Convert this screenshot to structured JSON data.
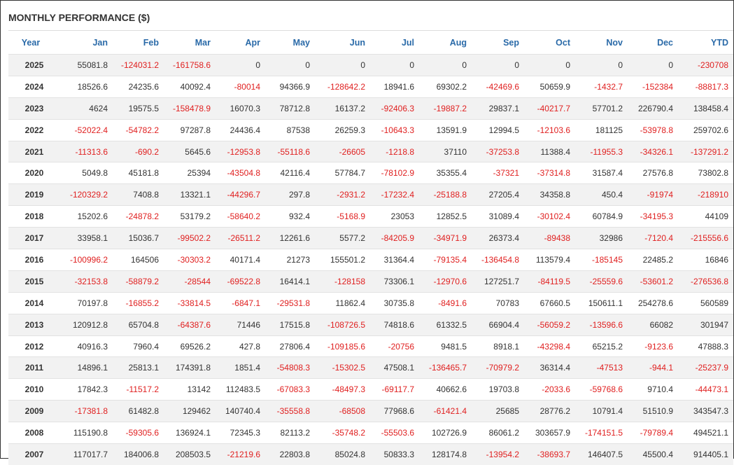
{
  "title": "MONTHLY PERFORMANCE ($)",
  "colors": {
    "header_text": "#2a6aa8",
    "negative": "#e02020",
    "text": "#333333",
    "stripe": "#f2f2f2"
  },
  "columns": [
    "Year",
    "Jan",
    "Feb",
    "Mar",
    "Apr",
    "May",
    "Jun",
    "Jul",
    "Aug",
    "Sep",
    "Oct",
    "Nov",
    "Dec",
    "YTD"
  ],
  "rows": [
    [
      "2025",
      "55081.8",
      "-124031.2",
      "-161758.6",
      "0",
      "0",
      "0",
      "0",
      "0",
      "0",
      "0",
      "0",
      "0",
      "-230708"
    ],
    [
      "2024",
      "18526.6",
      "24235.6",
      "40092.4",
      "-80014",
      "94366.9",
      "-128642.2",
      "18941.6",
      "69302.2",
      "-42469.6",
      "50659.9",
      "-1432.7",
      "-152384",
      "-88817.3"
    ],
    [
      "2023",
      "4624",
      "19575.5",
      "-158478.9",
      "16070.3",
      "78712.8",
      "16137.2",
      "-92406.3",
      "-19887.2",
      "29837.1",
      "-40217.7",
      "57701.2",
      "226790.4",
      "138458.4"
    ],
    [
      "2022",
      "-52022.4",
      "-54782.2",
      "97287.8",
      "24436.4",
      "87538",
      "26259.3",
      "-10643.3",
      "13591.9",
      "12994.5",
      "-12103.6",
      "181125",
      "-53978.8",
      "259702.6"
    ],
    [
      "2021",
      "-11313.6",
      "-690.2",
      "5645.6",
      "-12953.8",
      "-55118.6",
      "-26605",
      "-1218.8",
      "37110",
      "-37253.8",
      "11388.4",
      "-11955.3",
      "-34326.1",
      "-137291.2"
    ],
    [
      "2020",
      "5049.8",
      "45181.8",
      "25394",
      "-43504.8",
      "42116.4",
      "57784.7",
      "-78102.9",
      "35355.4",
      "-37321",
      "-37314.8",
      "31587.4",
      "27576.8",
      "73802.8"
    ],
    [
      "2019",
      "-120329.2",
      "7408.8",
      "13321.1",
      "-44296.7",
      "297.8",
      "-2931.2",
      "-17232.4",
      "-25188.8",
      "27205.4",
      "34358.8",
      "450.4",
      "-91974",
      "-218910"
    ],
    [
      "2018",
      "15202.6",
      "-24878.2",
      "53179.2",
      "-58640.2",
      "932.4",
      "-5168.9",
      "23053",
      "12852.5",
      "31089.4",
      "-30102.4",
      "60784.9",
      "-34195.3",
      "44109"
    ],
    [
      "2017",
      "33958.1",
      "15036.7",
      "-99502.2",
      "-26511.2",
      "12261.6",
      "5577.2",
      "-84205.9",
      "-34971.9",
      "26373.4",
      "-89438",
      "32986",
      "-7120.4",
      "-215556.6"
    ],
    [
      "2016",
      "-100996.2",
      "164506",
      "-30303.2",
      "40171.4",
      "21273",
      "155501.2",
      "31364.4",
      "-79135.4",
      "-136454.8",
      "113579.4",
      "-185145",
      "22485.2",
      "16846"
    ],
    [
      "2015",
      "-32153.8",
      "-58879.2",
      "-28544",
      "-69522.8",
      "16414.1",
      "-128158",
      "73306.1",
      "-12970.6",
      "127251.7",
      "-84119.5",
      "-25559.6",
      "-53601.2",
      "-276536.8"
    ],
    [
      "2014",
      "70197.8",
      "-16855.2",
      "-33814.5",
      "-6847.1",
      "-29531.8",
      "11862.4",
      "30735.8",
      "-8491.6",
      "70783",
      "67660.5",
      "150611.1",
      "254278.6",
      "560589"
    ],
    [
      "2013",
      "120912.8",
      "65704.8",
      "-64387.6",
      "71446",
      "17515.8",
      "-108726.5",
      "74818.6",
      "61332.5",
      "66904.4",
      "-56059.2",
      "-13596.6",
      "66082",
      "301947"
    ],
    [
      "2012",
      "40916.3",
      "7960.4",
      "69526.2",
      "427.8",
      "27806.4",
      "-109185.6",
      "-20756",
      "9481.5",
      "8918.1",
      "-43298.4",
      "65215.2",
      "-9123.6",
      "47888.3"
    ],
    [
      "2011",
      "14896.1",
      "25813.1",
      "174391.8",
      "1851.4",
      "-54808.3",
      "-15302.5",
      "47508.1",
      "-136465.7",
      "-70979.2",
      "36314.4",
      "-47513",
      "-944.1",
      "-25237.9"
    ],
    [
      "2010",
      "17842.3",
      "-11517.2",
      "13142",
      "112483.5",
      "-67083.3",
      "-48497.3",
      "-69117.7",
      "40662.6",
      "19703.8",
      "-2033.6",
      "-59768.6",
      "9710.4",
      "-44473.1"
    ],
    [
      "2009",
      "-17381.8",
      "61482.8",
      "129462",
      "140740.4",
      "-35558.8",
      "-68508",
      "77968.6",
      "-61421.4",
      "25685",
      "28776.2",
      "10791.4",
      "51510.9",
      "343547.3"
    ],
    [
      "2008",
      "115190.8",
      "-59305.6",
      "136924.1",
      "72345.3",
      "82113.2",
      "-35748.2",
      "-55503.6",
      "102726.9",
      "86061.2",
      "303657.9",
      "-174151.5",
      "-79789.4",
      "494521.1"
    ],
    [
      "2007",
      "117017.7",
      "184006.8",
      "208503.5",
      "-21219.6",
      "22803.8",
      "85024.8",
      "50833.3",
      "128174.8",
      "-13954.2",
      "-38693.7",
      "146407.5",
      "45500.4",
      "914405.1"
    ]
  ]
}
